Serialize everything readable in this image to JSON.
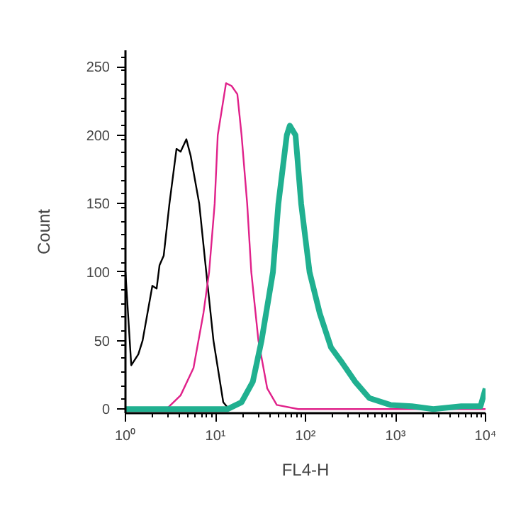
{
  "chart_data": {
    "type": "line",
    "xlabel": "FL4-H",
    "ylabel": "Count",
    "log": "x",
    "xlim": [
      1,
      10000
    ],
    "ylim": [
      -3,
      262
    ],
    "xticks": [
      {
        "value": 1,
        "label": "10⁰"
      },
      {
        "value": 10,
        "label": "10¹"
      },
      {
        "value": 100,
        "label": "10²"
      },
      {
        "value": 1000,
        "label": "10³"
      },
      {
        "value": 10000,
        "label": "10⁴"
      }
    ],
    "yticks": [
      0,
      50,
      100,
      150,
      200,
      250
    ],
    "grid": false,
    "marker": "none",
    "line_style": "solid",
    "series": [
      {
        "color": "#000000",
        "x": [
          1.0,
          1.16,
          1.39,
          1.55,
          1.99,
          2.22,
          2.39,
          2.66,
          3.08,
          3.69,
          4.1,
          4.75,
          5.3,
          6.6,
          7.9,
          9.5,
          12.2,
          14.1
        ],
        "values": [
          100,
          32,
          40,
          50,
          90,
          88,
          105,
          112,
          150,
          190,
          188,
          197,
          185,
          150,
          100,
          50,
          5,
          0
        ]
      },
      {
        "color": "#e0218a",
        "x": [
          2.86,
          4.1,
          5.7,
          7.35,
          8.5,
          9.8,
          10.6,
          13.1,
          15.1,
          17.5,
          19.5,
          22.5,
          25,
          30,
          37.6,
          48,
          83,
          10000
        ],
        "values": [
          0,
          10,
          30,
          70,
          100,
          150,
          200,
          238,
          236,
          230,
          200,
          150,
          100,
          50,
          15,
          3,
          0,
          0
        ]
      },
      {
        "color": "#20b090",
        "x": [
          1.0,
          13.7,
          19.5,
          26,
          32.5,
          43.5,
          50,
          62,
          67,
          77.5,
          89.5,
          111,
          144,
          192,
          248,
          356,
          512,
          880,
          1520,
          2630,
          5370,
          8800,
          10000
        ],
        "values": [
          0,
          0,
          5,
          20,
          50,
          100,
          150,
          200,
          207,
          200,
          150,
          100,
          70,
          45,
          35,
          20,
          8,
          3,
          2,
          0,
          2,
          2,
          15
        ]
      }
    ]
  }
}
